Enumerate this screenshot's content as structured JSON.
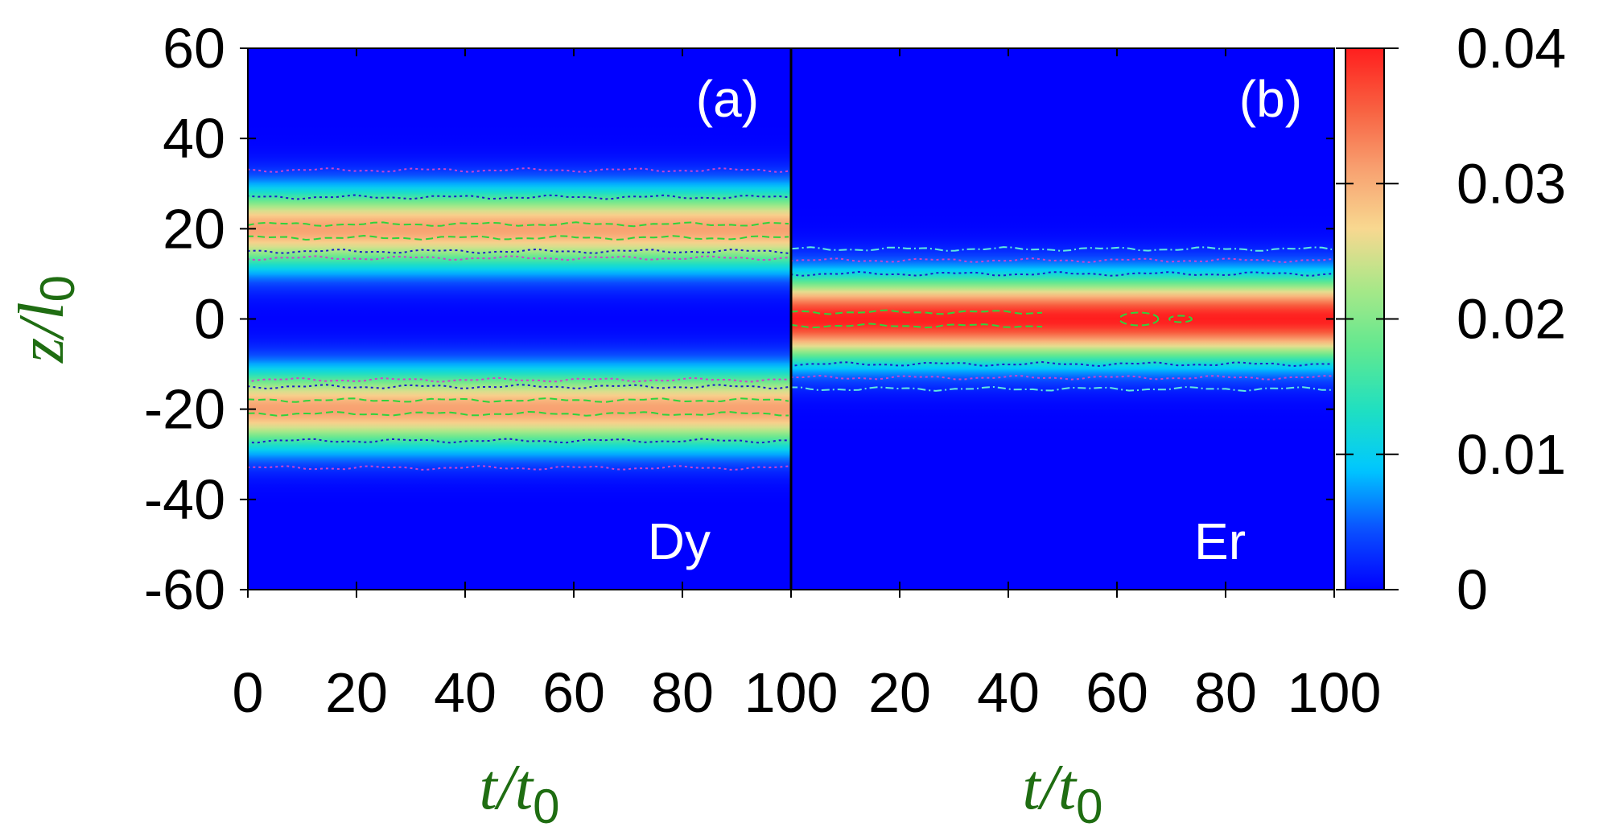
{
  "chart_data": {
    "type": "heatmap",
    "figure_layout": "two side-by-side panels sharing a colorbar on the right",
    "colormap": {
      "name": "jet",
      "stops": [
        "#0000ff",
        "#0a50ff",
        "#00c8ff",
        "#20e0c0",
        "#60e890",
        "#a8e888",
        "#f8d890",
        "#f8a070",
        "#f86040",
        "#ff1e1e"
      ]
    },
    "colorbar": {
      "min": 0,
      "max": 0.04,
      "ticks": [
        0,
        0.01,
        0.02,
        0.03,
        0.04
      ],
      "tick_labels": [
        "0",
        "0.01",
        "0.02",
        "0.03",
        "0.04"
      ]
    },
    "y_axis": {
      "label_main": "z/l",
      "label_sub": "0",
      "range": [
        -60,
        60
      ],
      "ticks": [
        -60,
        -40,
        -20,
        0,
        20,
        40,
        60
      ],
      "tick_labels": [
        "-60",
        "-40",
        "-20",
        "0",
        "20",
        "40",
        "60"
      ]
    },
    "panels": [
      {
        "id": "a",
        "label": "(a)",
        "species": "Dy",
        "x_range": [
          0,
          100
        ],
        "x_ticks": [
          0,
          20,
          40,
          60,
          80,
          100
        ],
        "x_tick_labels": [
          "0",
          "20",
          "40",
          "60",
          "80",
          "100"
        ],
        "x_label_main": "t/t",
        "x_label_sub": "0",
        "density_profile": {
          "description": "two symmetric density peaks, stationary in time",
          "peaks": [
            {
              "center_z": 20,
              "amplitude": 0.031,
              "width_z": 8.5
            },
            {
              "center_z": -20,
              "amplitude": 0.031,
              "width_z": 8.5
            }
          ]
        },
        "contours": [
          {
            "level": 0.03,
            "color": "#2ed43c",
            "dash": "dashed",
            "z": [
              21,
              18,
              -18,
              -21
            ]
          },
          {
            "level": 0.02,
            "color": "#1c1ccc",
            "dash": "dotted",
            "z": [
              27,
              15,
              -15,
              -27
            ]
          },
          {
            "level": 0.01,
            "color": "#cc44cc",
            "dash": "dotted",
            "z": [
              33,
              13.5,
              -13.5,
              -33
            ]
          }
        ]
      },
      {
        "id": "b",
        "label": "(b)",
        "species": "Er",
        "x_range": [
          0,
          100
        ],
        "x_ticks": [
          0,
          20,
          40,
          60,
          80,
          100
        ],
        "x_tick_labels": [
          "0",
          "20",
          "40",
          "60",
          "80",
          "100"
        ],
        "x_label_main": "t/t",
        "x_label_sub": "0",
        "density_profile": {
          "description": "single central density peak, stationary in time",
          "peaks": [
            {
              "center_z": 0,
              "amplitude": 0.04,
              "width_z": 9
            }
          ]
        },
        "contours": [
          {
            "level": 0.039,
            "color": "#2ed43c",
            "dash": "dashed",
            "z": [
              1.5,
              -1.5
            ],
            "t_span": [
              0,
              47
            ],
            "islands_t": [
              62,
              72
            ]
          },
          {
            "level": 0.03,
            "color": "#1c1ccc",
            "dash": "dotted",
            "z": [
              10,
              -10
            ]
          },
          {
            "level": 0.015,
            "color": "#cc44cc",
            "dash": "dotted",
            "z": [
              13,
              -13
            ]
          },
          {
            "level": 0.01,
            "color": "#60e8e0",
            "dash": "dashdot",
            "z": [
              15.5,
              -15.5
            ]
          }
        ]
      }
    ]
  }
}
